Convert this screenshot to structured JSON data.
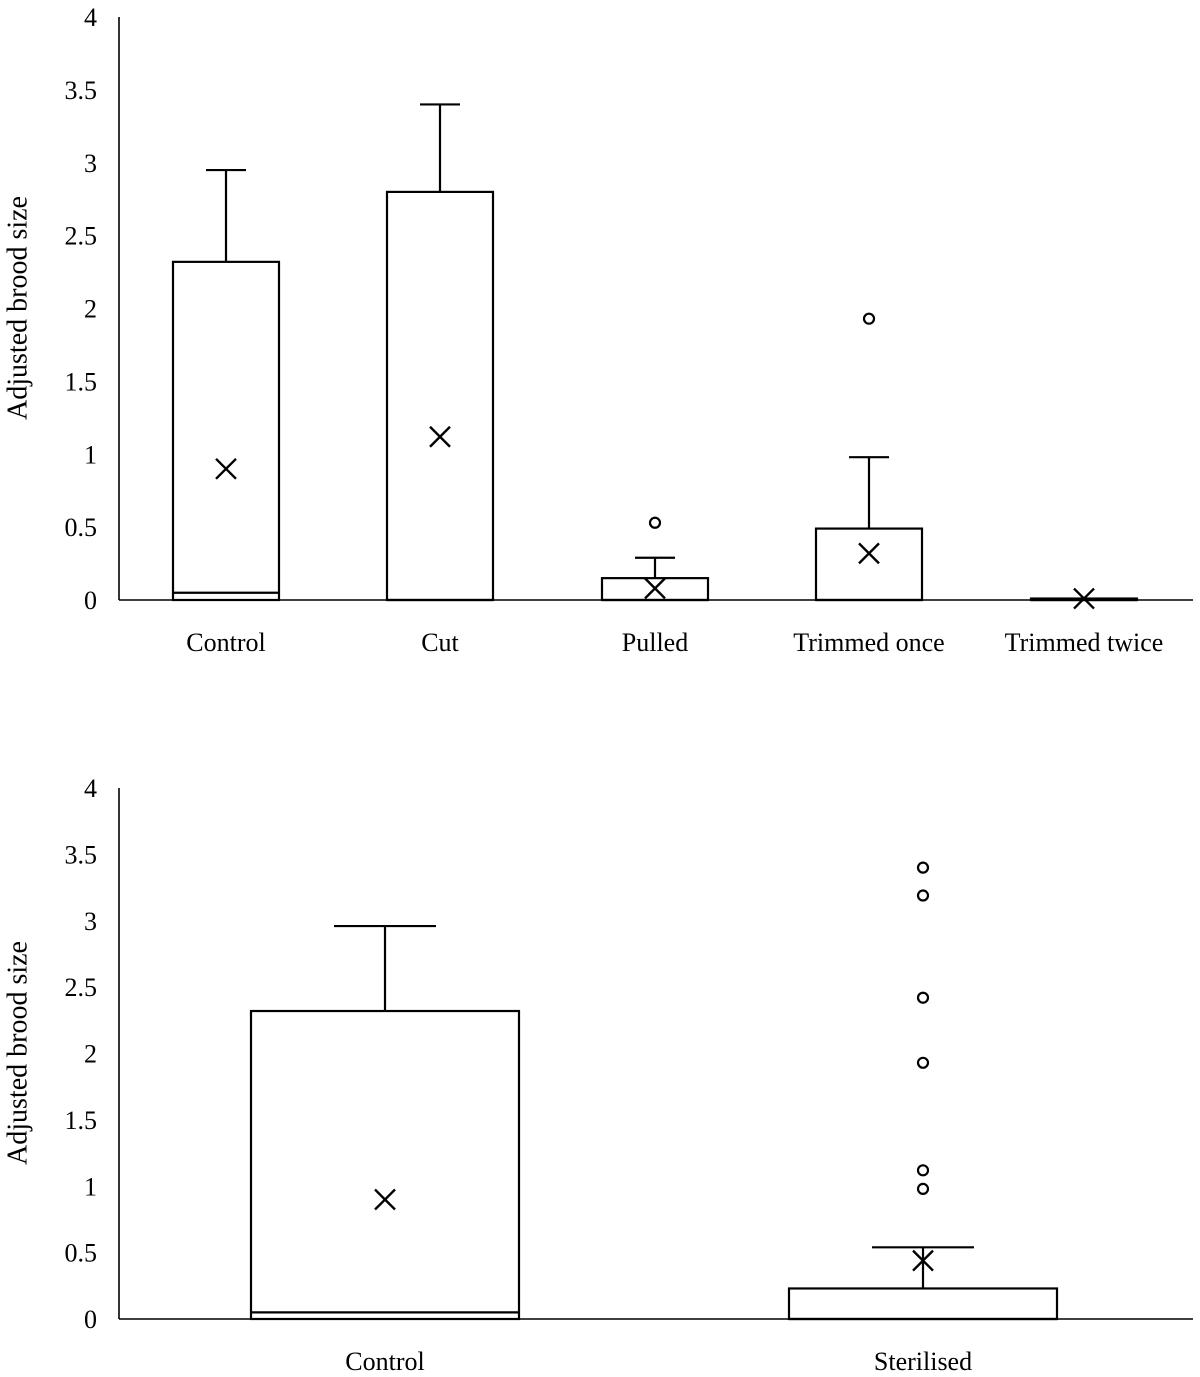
{
  "chart_data": [
    {
      "type": "box",
      "ylabel": "Adjusted brood size",
      "ylim": [
        0,
        4
      ],
      "yticks": [
        "0",
        "0.5",
        "1",
        "1.5",
        "2",
        "2.5",
        "3",
        "3.5",
        "4"
      ],
      "categories": [
        "Control",
        "Cut",
        "Pulled",
        "Trimmed once",
        "Trimmed twice"
      ],
      "boxes": [
        {
          "name": "Control",
          "min": 0,
          "q1": 0,
          "median": 0.05,
          "q3": 2.32,
          "max": 2.95,
          "mean": 0.9,
          "outliers": []
        },
        {
          "name": "Cut",
          "min": 0,
          "q1": 0,
          "median": 0,
          "q3": 2.8,
          "max": 3.4,
          "mean": 1.12,
          "outliers": []
        },
        {
          "name": "Pulled",
          "min": 0,
          "q1": 0,
          "median": 0,
          "q3": 0.15,
          "max": 0.29,
          "mean": 0.08,
          "outliers": [
            0.53
          ]
        },
        {
          "name": "Trimmed once",
          "min": 0,
          "q1": 0,
          "median": 0,
          "q3": 0.49,
          "max": 0.98,
          "mean": 0.32,
          "outliers": [
            1.93
          ]
        },
        {
          "name": "Trimmed twice",
          "min": 0,
          "q1": 0,
          "median": 0,
          "q3": 0.01,
          "max": 0.01,
          "mean": 0.01,
          "outliers": []
        }
      ]
    },
    {
      "type": "box",
      "ylabel": "Adjusted brood size",
      "ylim": [
        0,
        4
      ],
      "yticks": [
        "0",
        "0.5",
        "1",
        "1.5",
        "2",
        "2.5",
        "3",
        "3.5",
        "4"
      ],
      "categories": [
        "Control",
        "Sterilised"
      ],
      "boxes": [
        {
          "name": "Control",
          "min": 0,
          "q1": 0,
          "median": 0.05,
          "q3": 2.32,
          "max": 2.96,
          "mean": 0.9,
          "outliers": []
        },
        {
          "name": "Sterilised",
          "min": 0,
          "q1": 0,
          "median": 0,
          "q3": 0.23,
          "max": 0.54,
          "mean": 0.44,
          "outliers": [
            0.98,
            1.12,
            1.93,
            2.42,
            3.19,
            3.4
          ]
        }
      ]
    }
  ]
}
